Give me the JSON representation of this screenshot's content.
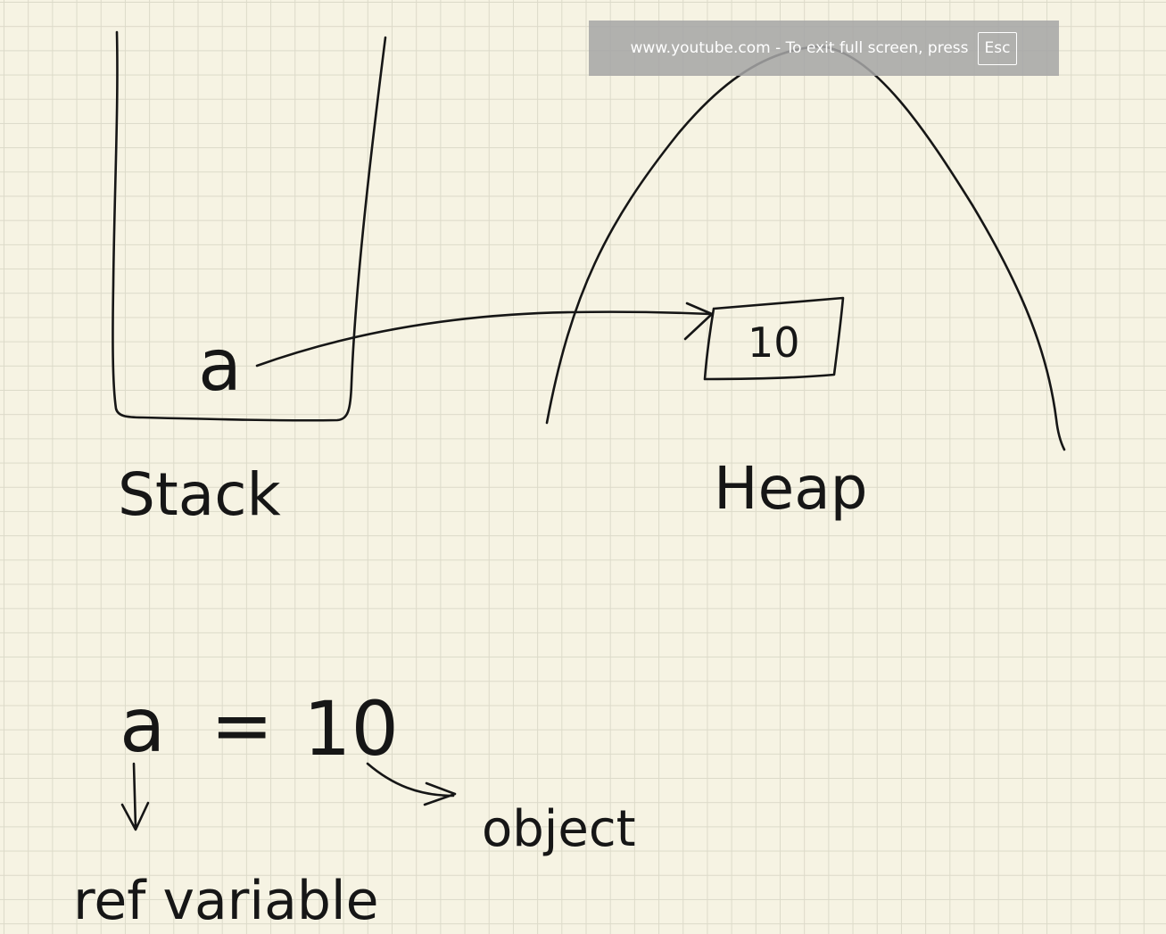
{
  "fullscreen_notice": {
    "message": "www.youtube.com - To exit full screen, press",
    "key": "Esc"
  },
  "whiteboard": {
    "stack_variable": "a",
    "stack_label": "Stack",
    "heap_value": "10",
    "heap_label": "Heap",
    "statement_var": "a",
    "statement_op": "=",
    "statement_value": "10",
    "ref_label": "ref variable",
    "object_label": "object"
  }
}
